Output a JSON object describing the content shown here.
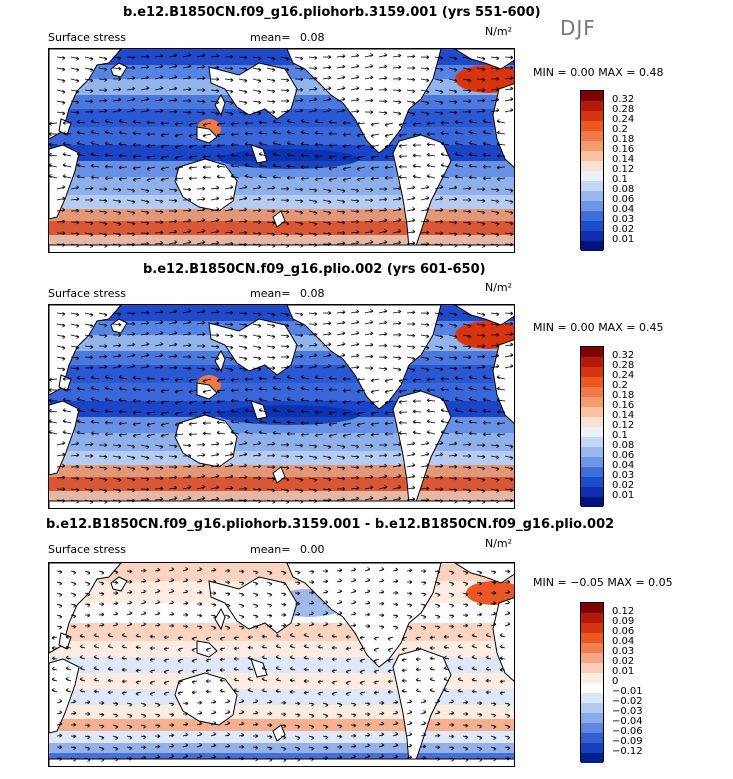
{
  "season": "DJF",
  "panels": [
    {
      "title": "b.e12.B1850CN.f09_g16.pliohorb.3159.001 (yrs 551-600)",
      "label": "Surface stress",
      "mean_label": "mean=",
      "mean": "0.08",
      "units": "N/m²",
      "min_label": "MIN =",
      "min": "0.00",
      "max_label": "MAX =",
      "max": "0.48",
      "levels": [
        "0.32",
        "0.28",
        "0.24",
        "0.2",
        "0.18",
        "0.16",
        "0.14",
        "0.12",
        "0.1",
        "0.08",
        "0.06",
        "0.04",
        "0.03",
        "0.02",
        "0.01"
      ]
    },
    {
      "title": "b.e12.B1850CN.f09_g16.plio.002 (yrs 601-650)",
      "label": "Surface stress",
      "mean_label": "mean=",
      "mean": "0.08",
      "units": "N/m²",
      "min_label": "MIN =",
      "min": "0.00",
      "max_label": "MAX =",
      "max": "0.45",
      "levels": [
        "0.32",
        "0.28",
        "0.24",
        "0.2",
        "0.18",
        "0.16",
        "0.14",
        "0.12",
        "0.1",
        "0.08",
        "0.06",
        "0.04",
        "0.03",
        "0.02",
        "0.01"
      ]
    },
    {
      "title": "b.e12.B1850CN.f09_g16.pliohorb.3159.001 - b.e12.B1850CN.f09_g16.plio.002",
      "label": "Surface stress",
      "mean_label": "mean=",
      "mean": "0.00",
      "units": "N/m²",
      "min_label": "MIN =",
      "min": "−0.05",
      "max_label": "MAX =",
      "max": "0.05",
      "levels": [
        "0.12",
        "0.09",
        "0.06",
        "0.04",
        "0.03",
        "0.02",
        "0.01",
        "0",
        "−0.01",
        "−0.02",
        "−0.03",
        "−0.04",
        "−0.06",
        "−0.09",
        "−0.12"
      ]
    }
  ],
  "colors": {
    "abs_scale": [
      "#7f0000",
      "#b2180b",
      "#d8340f",
      "#ec5524",
      "#f07a45",
      "#f59c6f",
      "#f9c0a1",
      "#fde1cf",
      "#e8f0fb",
      "#c3d6f5",
      "#98b8ee",
      "#6d96e6",
      "#3f6fdb",
      "#1d4bcc",
      "#0a2fb0",
      "#00137d"
    ],
    "diff_scale": [
      "#7f0000",
      "#b2180b",
      "#d8340f",
      "#ec5524",
      "#f27f4e",
      "#f6a785",
      "#fbd0ba",
      "#fdebdf",
      "#ffffff",
      "#dbe7f8",
      "#b4cbf1",
      "#8aaae8",
      "#5e87df",
      "#3460d2",
      "#1540bd",
      "#001f8f"
    ]
  }
}
